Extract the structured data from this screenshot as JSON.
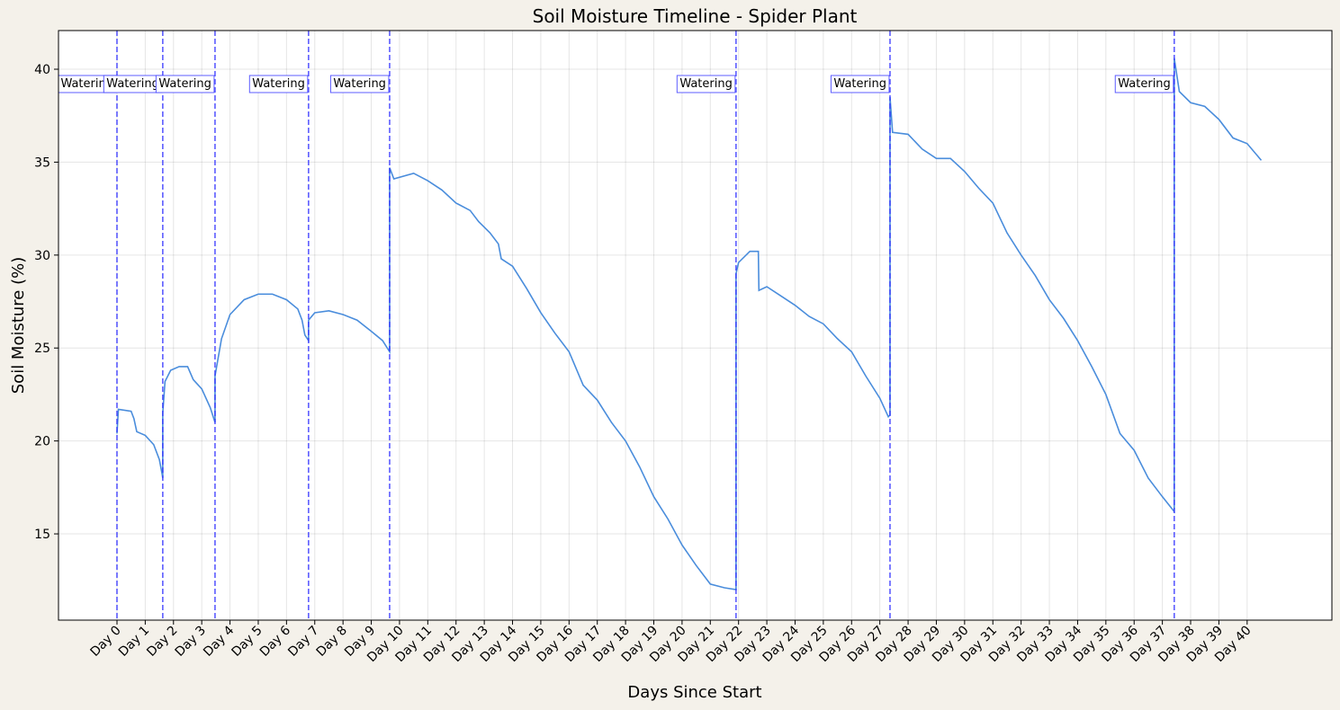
{
  "chart_data": {
    "type": "line",
    "title": "Soil Moisture Timeline - Spider Plant",
    "xlabel": "Days Since Start",
    "ylabel": "Soil Moisture (%)",
    "grid": true,
    "xlim": [
      -2.07,
      43.0
    ],
    "ylim": [
      10.36,
      42.08
    ],
    "yticks": [
      15,
      20,
      25,
      30,
      35,
      40
    ],
    "xticks": [
      {
        "value": 0,
        "label": "Day 0"
      },
      {
        "value": 1,
        "label": "Day 1"
      },
      {
        "value": 2,
        "label": "Day 2"
      },
      {
        "value": 3,
        "label": "Day 3"
      },
      {
        "value": 4,
        "label": "Day 4"
      },
      {
        "value": 5,
        "label": "Day 5"
      },
      {
        "value": 6,
        "label": "Day 6"
      },
      {
        "value": 7,
        "label": "Day 7"
      },
      {
        "value": 8,
        "label": "Day 8"
      },
      {
        "value": 9,
        "label": "Day 9"
      },
      {
        "value": 10,
        "label": "Day 10"
      },
      {
        "value": 11,
        "label": "Day 11"
      },
      {
        "value": 12,
        "label": "Day 12"
      },
      {
        "value": 13,
        "label": "Day 13"
      },
      {
        "value": 14,
        "label": "Day 14"
      },
      {
        "value": 15,
        "label": "Day 15"
      },
      {
        "value": 16,
        "label": "Day 16"
      },
      {
        "value": 17,
        "label": "Day 17"
      },
      {
        "value": 18,
        "label": "Day 18"
      },
      {
        "value": 19,
        "label": "Day 19"
      },
      {
        "value": 20,
        "label": "Day 20"
      },
      {
        "value": 21,
        "label": "Day 21"
      },
      {
        "value": 22,
        "label": "Day 22"
      },
      {
        "value": 23,
        "label": "Day 23"
      },
      {
        "value": 24,
        "label": "Day 24"
      },
      {
        "value": 25,
        "label": "Day 25"
      },
      {
        "value": 26,
        "label": "Day 26"
      },
      {
        "value": 27,
        "label": "Day 27"
      },
      {
        "value": 28,
        "label": "Day 28"
      },
      {
        "value": 29,
        "label": "Day 29"
      },
      {
        "value": 30,
        "label": "Day 30"
      },
      {
        "value": 31,
        "label": "Day 31"
      },
      {
        "value": 32,
        "label": "Day 32"
      },
      {
        "value": 33,
        "label": "Day 33"
      },
      {
        "value": 34,
        "label": "Day 34"
      },
      {
        "value": 35,
        "label": "Day 35"
      },
      {
        "value": 36,
        "label": "Day 36"
      },
      {
        "value": 37,
        "label": "Day 37"
      },
      {
        "value": 38,
        "label": "Day 38"
      },
      {
        "value": 39,
        "label": "Day 39"
      },
      {
        "value": 40,
        "label": "Day 40"
      }
    ],
    "series": [
      {
        "color": "#4a8ddc",
        "x": [
          0,
          0.05,
          0.5,
          0.6,
          0.7,
          1.0,
          1.3,
          1.5,
          1.6,
          1.62,
          1.62,
          1.7,
          1.9,
          2.2,
          2.5,
          2.7,
          3.0,
          3.3,
          3.47,
          3.47,
          3.7,
          4.0,
          4.5,
          5.0,
          5.5,
          6.0,
          6.4,
          6.55,
          6.65,
          6.78,
          6.78,
          7.0,
          7.5,
          8.0,
          8.5,
          9.0,
          9.4,
          9.65,
          9.65,
          9.8,
          10.5,
          11.0,
          11.5,
          12.0,
          12.5,
          12.8,
          13.2,
          13.5,
          13.6,
          14.0,
          14.5,
          15.0,
          15.5,
          16.0,
          16.5,
          17.0,
          17.5,
          18.0,
          18.5,
          19.0,
          19.5,
          20.0,
          20.5,
          21.0,
          21.5,
          21.91,
          21.91,
          22.0,
          22.4,
          22.7,
          22.72,
          23.0,
          23.5,
          24.0,
          24.5,
          25.0,
          25.5,
          26.0,
          26.5,
          27.0,
          27.3,
          27.36,
          27.36,
          27.45,
          28.0,
          28.5,
          29.0,
          29.5,
          30.0,
          30.5,
          31.0,
          31.5,
          32.0,
          32.5,
          33.0,
          33.5,
          34.0,
          34.5,
          35.0,
          35.5,
          36.0,
          36.5,
          37.0,
          37.42,
          37.42,
          37.6,
          38.0,
          38.5,
          39.0,
          39.5,
          40.0,
          40.5
        ],
        "values": [
          20.4,
          21.7,
          21.6,
          21.2,
          20.5,
          20.3,
          19.8,
          19.0,
          18.2,
          18.0,
          21.5,
          23.2,
          23.8,
          24.0,
          24.0,
          23.3,
          22.8,
          21.8,
          21.0,
          23.5,
          25.5,
          26.8,
          27.6,
          27.9,
          27.9,
          27.6,
          27.1,
          26.5,
          25.7,
          25.4,
          26.5,
          26.9,
          27.0,
          26.8,
          26.5,
          25.9,
          25.4,
          24.8,
          34.7,
          34.1,
          34.4,
          34.0,
          33.5,
          32.8,
          32.4,
          31.8,
          31.2,
          30.6,
          29.8,
          29.4,
          28.2,
          26.9,
          25.8,
          24.8,
          23.0,
          22.2,
          21.0,
          20.0,
          18.6,
          17.0,
          15.8,
          14.4,
          13.3,
          12.3,
          12.1,
          12.0,
          29.0,
          29.6,
          30.2,
          30.2,
          28.1,
          28.3,
          27.8,
          27.3,
          26.7,
          26.3,
          25.5,
          24.8,
          23.5,
          22.3,
          21.3,
          21.4,
          38.5,
          36.6,
          36.5,
          35.7,
          35.2,
          35.2,
          34.5,
          33.6,
          32.8,
          31.2,
          30.0,
          28.9,
          27.6,
          26.6,
          25.4,
          24.0,
          22.5,
          20.4,
          19.5,
          18.0,
          17.0,
          16.2,
          40.6,
          38.8,
          38.2,
          38.0,
          37.3,
          36.3,
          36.0,
          35.1
        ]
      }
    ],
    "events": {
      "color": "#3333ff",
      "x": [
        0,
        1.62,
        3.47,
        6.78,
        9.65,
        21.91,
        27.36,
        37.42
      ],
      "labels": [
        "Watering",
        "Watering",
        "Watering",
        "Watering",
        "Watering",
        "Watering",
        "Watering",
        "Watering"
      ]
    }
  }
}
